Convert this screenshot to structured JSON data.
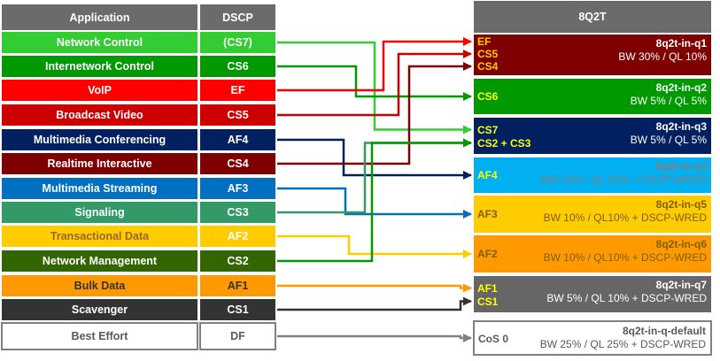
{
  "headers": {
    "application": "Application",
    "dscp": "DSCP",
    "queue": "8Q2T"
  },
  "rows": [
    {
      "app": "Network Control",
      "dscp": "(CS7)",
      "bg": "#33cc33",
      "fg": "#ffffff",
      "dfg": "#ffffff"
    },
    {
      "app": "Internetwork Control",
      "dscp": "CS6",
      "bg": "#009900",
      "fg": "#ffffff",
      "dfg": "#ffffff"
    },
    {
      "app": "VoIP",
      "dscp": "EF",
      "bg": "#ff0000",
      "fg": "#ffffff",
      "dfg": "#ffffff"
    },
    {
      "app": "Broadcast Video",
      "dscp": "CS5",
      "bg": "#cc0000",
      "fg": "#ffffff",
      "dfg": "#ffffff"
    },
    {
      "app": "Multimedia Conferencing",
      "dscp": "AF4",
      "bg": "#002060",
      "fg": "#ffffff",
      "dfg": "#ffffff"
    },
    {
      "app": "Realtime Interactive",
      "dscp": "CS4",
      "bg": "#7f0000",
      "fg": "#ffffff",
      "dfg": "#ffffff"
    },
    {
      "app": "Multimedia Streaming",
      "dscp": "AF3",
      "bg": "#0070c0",
      "fg": "#ffffff",
      "dfg": "#ffffff"
    },
    {
      "app": "Signaling",
      "dscp": "CS3",
      "bg": "#339966",
      "fg": "#ffffff",
      "dfg": "#ffffff"
    },
    {
      "app": "Transactional Data",
      "dscp": "AF2",
      "bg": "#ffcc00",
      "fg": "#996633",
      "dfg": "#ffffff"
    },
    {
      "app": "Network Management",
      "dscp": "CS2",
      "bg": "#336600",
      "fg": "#ffffff",
      "dfg": "#ffffff"
    },
    {
      "app": "Bulk Data",
      "dscp": "AF1",
      "bg": "#ff9900",
      "fg": "#333333",
      "dfg": "#333333"
    },
    {
      "app": "Scavenger",
      "dscp": "CS1",
      "bg": "#333333",
      "fg": "#ffffff",
      "dfg": "#ffffff"
    },
    {
      "app": "Best Effort",
      "dscp": "DF",
      "bg": "#ffffff",
      "fg": "#595959",
      "dfg": "#595959",
      "border": "#808080"
    }
  ],
  "queues": [
    {
      "name": "8q2t-in-q1",
      "desc": "BW 30% / QL 10%",
      "labels": [
        "EF",
        "CS5",
        "CS4"
      ],
      "bg": "#7f0000",
      "fg": "#ffffff",
      "lfg": "#ffcc00"
    },
    {
      "name": "8q2t-in-q2",
      "desc": "BW 5% / QL 5%",
      "labels": [
        "CS6"
      ],
      "bg": "#009900",
      "fg": "#ffffff",
      "lfg": "#ffff00"
    },
    {
      "name": "8q2t-in-q3",
      "desc": "BW 5% / QL 5%",
      "labels": [
        "CS7",
        "CS2 + CS3"
      ],
      "bg": "#002060",
      "fg": "#ffffff",
      "lfg": "#ffff00"
    },
    {
      "name": "8q2t-in-q4",
      "desc": "BW 10% / QL 25% + DSCP-WRED",
      "labels": [
        "AF4"
      ],
      "bg": "#00b0f0",
      "fg": "#808080",
      "lfg": "#ffff00"
    },
    {
      "name": "8q2t-in-q5",
      "desc": "BW 10% / QL10% + DSCP-WRED",
      "labels": [
        "AF3"
      ],
      "bg": "#ffcc00",
      "fg": "#7f6000",
      "lfg": "#7f6000"
    },
    {
      "name": "8q2t-in-q6",
      "desc": "BW 10% / QL10% + DSCP-WRED",
      "labels": [
        "AF2"
      ],
      "bg": "#ff9900",
      "fg": "#7f6000",
      "lfg": "#7f6000"
    },
    {
      "name": "8q2t-in-q7",
      "desc": "BW 5% / QL 10% + DSCP-WRED",
      "labels": [
        "AF1",
        "CS1"
      ],
      "bg": "#666666",
      "fg": "#ffffff",
      "lfg": "#ffff00"
    },
    {
      "name": "8q2t-in-q-default",
      "desc": "BW 25% / QL 25% + DSCP-WRED",
      "labels": [
        "CoS 0"
      ],
      "bg": "#ffffff",
      "fg": "#595959",
      "lfg": "#595959",
      "border": "#808080"
    }
  ],
  "mappings": [
    {
      "from": "(CS7)",
      "to": "CS7",
      "color": "#33cc33"
    },
    {
      "from": "CS6",
      "to": "CS6",
      "color": "#009900"
    },
    {
      "from": "EF",
      "to": "EF",
      "color": "#ff0000"
    },
    {
      "from": "CS5",
      "to": "CS5",
      "color": "#cc0000"
    },
    {
      "from": "AF4",
      "to": "AF4",
      "color": "#002060"
    },
    {
      "from": "CS4",
      "to": "CS4",
      "color": "#7f0000"
    },
    {
      "from": "AF3",
      "to": "AF3",
      "color": "#0070c0"
    },
    {
      "from": "CS3",
      "to": "CS2 + CS3",
      "color": "#339966"
    },
    {
      "from": "AF2",
      "to": "AF2",
      "color": "#ffcc00"
    },
    {
      "from": "CS2",
      "to": "CS2 + CS3",
      "color": "#009900"
    },
    {
      "from": "AF1",
      "to": "AF1",
      "color": "#ff9900"
    },
    {
      "from": "CS1",
      "to": "CS1",
      "color": "#333333"
    },
    {
      "from": "DF",
      "to": "CoS 0",
      "color": "#808080"
    }
  ]
}
